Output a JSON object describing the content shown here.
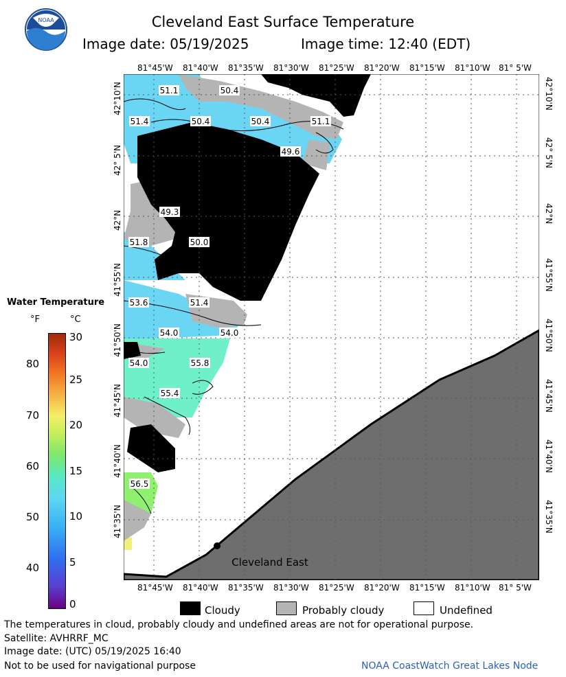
{
  "header": {
    "title": "Cleveland East Surface Temperature",
    "image_date_label": "Image date: 05/19/2025",
    "image_time_label": "Image time: 12:40 (EDT)"
  },
  "map": {
    "longitude_labels": [
      "81°45'W",
      "81°40'W",
      "81°35'W",
      "81°30'W",
      "81°25'W",
      "81°20'W",
      "81°15'W",
      "81°10'W",
      "81° 5'W"
    ],
    "latitude_labels": [
      "42°10'N",
      "42° 5'N",
      "42°N",
      "41°55'N",
      "41°50'N",
      "41°45'N",
      "41°40'N",
      "41°35'N"
    ],
    "contour_labels": [
      "51.1",
      "50.4",
      "51.4",
      "50.4",
      "50.4",
      "51.1",
      "49.6",
      "49.3",
      "51.8",
      "50.0",
      "53.6",
      "51.4",
      "54.0",
      "54.0",
      "54.0",
      "55.8",
      "55.4",
      "56.5"
    ],
    "place_label": "Cleveland East",
    "colors": {
      "cloud": "#000000",
      "probably_cloudy": "#b4b4b4",
      "land": "#6e6e6e",
      "undefined": "#ffffff",
      "water_cool": "#6ad6f4",
      "water_mid": "#70f0c8",
      "water_warm": "#90f070"
    }
  },
  "legend": {
    "title": "Water Temperature",
    "unit_f": "°F",
    "unit_c": "°C",
    "f_ticks": [
      "80",
      "70",
      "60",
      "50",
      "40"
    ],
    "c_ticks": [
      "30",
      "25",
      "20",
      "15",
      "10",
      "5",
      "0"
    ]
  },
  "key": {
    "cloudy": "Cloudy",
    "probably_cloudy": "Probably cloudy",
    "undefined": "Undefined"
  },
  "footer": {
    "disclaimer": "The temperatures in cloud, probably cloudy and undefined areas are not for operational purpose.",
    "satellite": "Satellite: AVHRRF_MC",
    "utc_date": "Image date: (UTC) 05/19/2025  16:40",
    "nav_warning": "Not to be used for navigational purpose",
    "credit": "NOAA CoastWatch Great Lakes Node"
  }
}
